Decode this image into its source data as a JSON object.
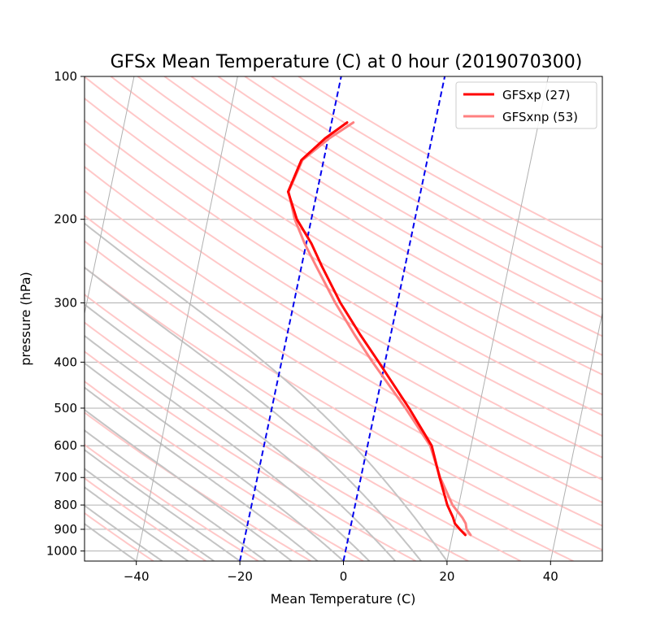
{
  "chart_data": {
    "type": "line",
    "title": "GFSx Mean Temperature (C) at 0 hour  (2019070300)",
    "xlabel": "Mean Temperature (C)",
    "ylabel": "pressure (hPa)",
    "xlim": [
      -50,
      50
    ],
    "ylim": [
      1050,
      100
    ],
    "y_scale": "log",
    "x_ticks": [
      -40,
      -20,
      0,
      20,
      40
    ],
    "x_tick_labels": [
      "−40",
      "−20",
      "0",
      "20",
      "40"
    ],
    "y_ticks": [
      100,
      200,
      300,
      400,
      500,
      600,
      700,
      800,
      900,
      1000
    ],
    "y_tick_labels": [
      "100",
      "200",
      "300",
      "400",
      "500",
      "600",
      "700",
      "800",
      "900",
      "1000"
    ],
    "grid": "horizontal at pressure ticks",
    "legend_position": "top-right",
    "series": [
      {
        "name": "GFSxp (27)",
        "color": "#ff0000",
        "pressure": [
          925,
          900,
          875,
          850,
          800,
          700,
          600,
          500,
          400,
          350,
          300,
          250,
          225,
          200,
          175,
          150,
          135,
          125
        ],
        "temperature": [
          22.5,
          21.2,
          20.0,
          19.4,
          17.8,
          15.2,
          12.4,
          6.5,
          -1.2,
          -5.9,
          -11.0,
          -16.2,
          -19.0,
          -22.8,
          -25.6,
          -24.3,
          -20.6,
          -17.0
        ]
      },
      {
        "name": "GFSxnp (53)",
        "color": "#ff8080",
        "pressure": [
          925,
          900,
          875,
          850,
          800,
          700,
          600,
          500,
          400,
          350,
          300,
          250,
          225,
          200,
          175,
          150,
          135,
          125
        ],
        "temperature": [
          23.5,
          22.5,
          22.1,
          21.2,
          18.8,
          15.3,
          12.1,
          5.8,
          -2.4,
          -7.0,
          -12.0,
          -17.3,
          -20.3,
          -23.2,
          -25.5,
          -24.1,
          -19.8,
          -15.8
        ]
      }
    ],
    "reference_lines": {
      "dry_adiabat_color": "#ffc8c8",
      "moist_adiabat_color": "#c4c4c4",
      "isotherm_color": "#b0b0b0",
      "highlighted_isotherm_color": "#0000ee",
      "highlighted_isotherms": [
        -20,
        0
      ]
    }
  }
}
